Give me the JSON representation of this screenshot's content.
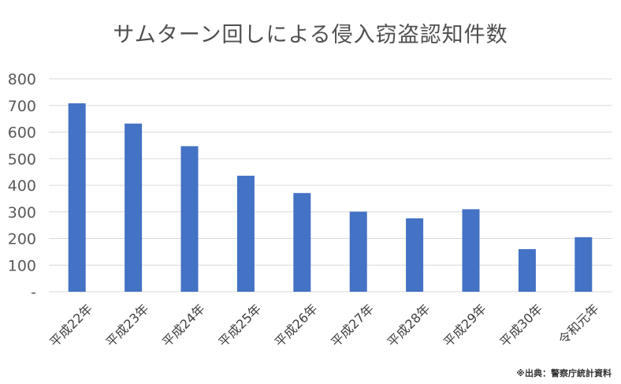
{
  "chart_data": {
    "type": "bar",
    "title": "サムターン回しによる侵入窃盗認知件数",
    "categories": [
      "平成22年",
      "平成23年",
      "平成24年",
      "平成25年",
      "平成26年",
      "平成27年",
      "平成28年",
      "平成29年",
      "平成30年",
      "令和元年"
    ],
    "values": [
      708,
      632,
      547,
      436,
      371,
      301,
      276,
      310,
      160,
      205
    ],
    "ylim": [
      0,
      800
    ],
    "yticks": [
      0,
      100,
      200,
      300,
      400,
      500,
      600,
      700,
      800
    ],
    "ytick_labels": [
      "-",
      "100",
      "200",
      "300",
      "400",
      "500",
      "600",
      "700",
      "800"
    ],
    "grid": true,
    "bar_color": "#4472c4",
    "xlabel": "",
    "ylabel": ""
  },
  "source_note": "※出典：警察庁統計資料"
}
